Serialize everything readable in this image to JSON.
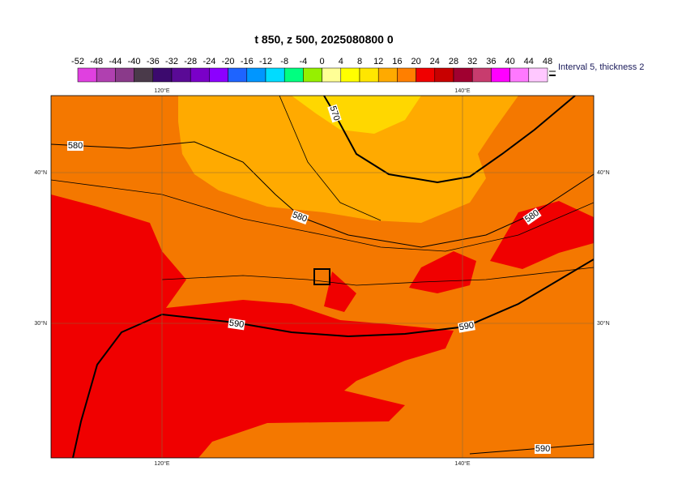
{
  "title": "t 850, z 500, 2025080800 0",
  "colorbar": {
    "labels": [
      "-52",
      "-48",
      "-44",
      "-40",
      "-36",
      "-32",
      "-28",
      "-24",
      "-20",
      "-16",
      "-12",
      "-8",
      "-4",
      "0",
      "4",
      "8",
      "12",
      "16",
      "20",
      "24",
      "28",
      "32",
      "36",
      "40",
      "44",
      "48"
    ],
    "colors": [
      "#e040e0",
      "#b040b0",
      "#8a3a8a",
      "#4a3a4a",
      "#3c0a6e",
      "#5a0a96",
      "#7a00c8",
      "#8c00ff",
      "#1e64ff",
      "#0096ff",
      "#00dcff",
      "#00ff80",
      "#96f000",
      "#ffff96",
      "#ffff00",
      "#ffe600",
      "#ffaa00",
      "#ff7f00",
      "#f00000",
      "#c80000",
      "#a00030",
      "#c83c6e",
      "#ff00ff",
      "#ff78ff",
      "#ffc8ff"
    ]
  },
  "legend": "Interval 5, thickness 2",
  "axes": {
    "top": [
      "120°E",
      "140°E"
    ],
    "bottom": [
      "120°E",
      "140°E"
    ],
    "left": [
      "40°N",
      "30°N"
    ],
    "right": [
      "40°N",
      "30°N"
    ]
  },
  "contour_labels": [
    "570",
    "580",
    "580",
    "580",
    "590",
    "590",
    "590"
  ]
}
